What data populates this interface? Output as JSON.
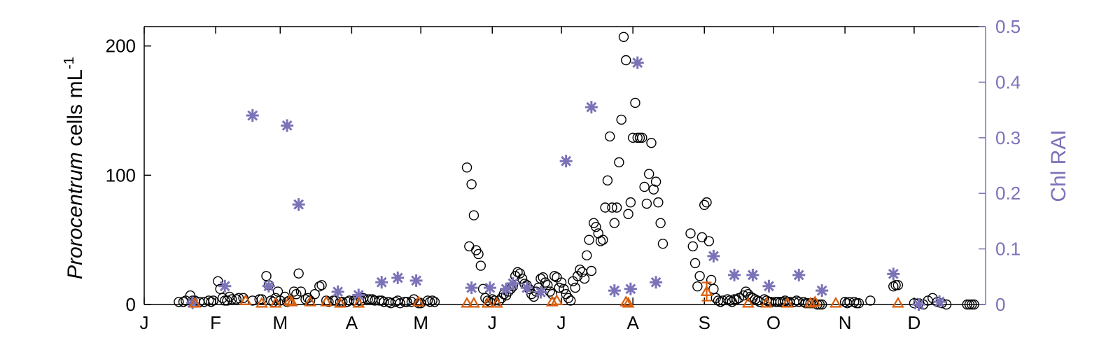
{
  "chart_data": {
    "type": "scatter",
    "title": "",
    "xlabel": "",
    "ylabel": {
      "italic": "Prorocentrum",
      "rest": " cells mL",
      "sup": "-1"
    },
    "y2label": "Chl RAI",
    "x_domain": [
      0,
      365
    ],
    "x_ticks": [
      {
        "label": "J",
        "x": 0
      },
      {
        "label": "F",
        "x": 31
      },
      {
        "label": "M",
        "x": 59
      },
      {
        "label": "A",
        "x": 90
      },
      {
        "label": "M",
        "x": 120
      },
      {
        "label": "J",
        "x": 151
      },
      {
        "label": "J",
        "x": 181
      },
      {
        "label": "A",
        "x": 212
      },
      {
        "label": "S",
        "x": 243
      },
      {
        "label": "O",
        "x": 273
      },
      {
        "label": "N",
        "x": 304
      },
      {
        "label": "D",
        "x": 334
      }
    ],
    "ylim": [
      0,
      215
    ],
    "yticks": [
      0,
      100,
      200
    ],
    "y2lim": [
      0,
      0.5
    ],
    "y2ticks": [
      "0",
      "0.1",
      "0.2",
      "0.3",
      "0.4",
      "0.5"
    ],
    "grid": false,
    "colors": {
      "circles": "#000000",
      "stars": "#7b73b8",
      "triangles": "#d95f0e",
      "right_axis": "#7b73b8"
    },
    "series": [
      {
        "marker": "circle",
        "points": [
          [
            15,
            2
          ],
          [
            17,
            2
          ],
          [
            18,
            3
          ],
          [
            20,
            7
          ],
          [
            21,
            3
          ],
          [
            22,
            3
          ],
          [
            24,
            2
          ],
          [
            26,
            2
          ],
          [
            28,
            3
          ],
          [
            29,
            2
          ],
          [
            30,
            3
          ],
          [
            32,
            18
          ],
          [
            33,
            12
          ],
          [
            34,
            5
          ],
          [
            35,
            3
          ],
          [
            36,
            3
          ],
          [
            37,
            6
          ],
          [
            38,
            4
          ],
          [
            40,
            4
          ],
          [
            41,
            5
          ],
          [
            43,
            5
          ],
          [
            47,
            3
          ],
          [
            50,
            4
          ],
          [
            51,
            4
          ],
          [
            53,
            22
          ],
          [
            54,
            15
          ],
          [
            55,
            3
          ],
          [
            56,
            2
          ],
          [
            57,
            5
          ],
          [
            58,
            10
          ],
          [
            59,
            3
          ],
          [
            61,
            6
          ],
          [
            62,
            2
          ],
          [
            63,
            3
          ],
          [
            65,
            10
          ],
          [
            66,
            8
          ],
          [
            67,
            24
          ],
          [
            68,
            10
          ],
          [
            70,
            4
          ],
          [
            71,
            5
          ],
          [
            72,
            3
          ],
          [
            74,
            8
          ],
          [
            76,
            14
          ],
          [
            77,
            15
          ],
          [
            79,
            3
          ],
          [
            80,
            2
          ],
          [
            82,
            3
          ],
          [
            83,
            3
          ],
          [
            85,
            2
          ],
          [
            86,
            2
          ],
          [
            88,
            2
          ],
          [
            89,
            3
          ],
          [
            91,
            3
          ],
          [
            92,
            2
          ],
          [
            94,
            3
          ],
          [
            95,
            5
          ],
          [
            97,
            4
          ],
          [
            98,
            4
          ],
          [
            99,
            4
          ],
          [
            100,
            3
          ],
          [
            102,
            3
          ],
          [
            103,
            3
          ],
          [
            104,
            2
          ],
          [
            106,
            2
          ],
          [
            107,
            1
          ],
          [
            109,
            2
          ],
          [
            110,
            3
          ],
          [
            111,
            1
          ],
          [
            113,
            2
          ],
          [
            114,
            2
          ],
          [
            116,
            2
          ],
          [
            117,
            4
          ],
          [
            119,
            1
          ],
          [
            120,
            1
          ],
          [
            123,
            3
          ],
          [
            124,
            2
          ],
          [
            125,
            3
          ],
          [
            126,
            2
          ],
          [
            140,
            106
          ],
          [
            141,
            45
          ],
          [
            142,
            93
          ],
          [
            143,
            69
          ],
          [
            144,
            42
          ],
          [
            145,
            39
          ],
          [
            146,
            30
          ],
          [
            147,
            12
          ],
          [
            148,
            5
          ],
          [
            149,
            3
          ],
          [
            150,
            2
          ],
          [
            151,
            4
          ],
          [
            152,
            3
          ],
          [
            154,
            3
          ],
          [
            155,
            5
          ],
          [
            156,
            8
          ],
          [
            157,
            7
          ],
          [
            158,
            10
          ],
          [
            159,
            12
          ],
          [
            160,
            14
          ],
          [
            161,
            22
          ],
          [
            162,
            25
          ],
          [
            163,
            24
          ],
          [
            164,
            20
          ],
          [
            165,
            16
          ],
          [
            166,
            15
          ],
          [
            167,
            12
          ],
          [
            168,
            8
          ],
          [
            169,
            6
          ],
          [
            170,
            10
          ],
          [
            171,
            13
          ],
          [
            172,
            20
          ],
          [
            173,
            21
          ],
          [
            174,
            17
          ],
          [
            175,
            15
          ],
          [
            176,
            10
          ],
          [
            177,
            8
          ],
          [
            178,
            22
          ],
          [
            179,
            21
          ],
          [
            180,
            13
          ],
          [
            181,
            17
          ],
          [
            182,
            12
          ],
          [
            183,
            8
          ],
          [
            184,
            5
          ],
          [
            185,
            3
          ],
          [
            186,
            18
          ],
          [
            187,
            13
          ],
          [
            188,
            22
          ],
          [
            189,
            27
          ],
          [
            190,
            25
          ],
          [
            191,
            20
          ],
          [
            192,
            38
          ],
          [
            193,
            50
          ],
          [
            194,
            26
          ],
          [
            195,
            63
          ],
          [
            196,
            60
          ],
          [
            197,
            55
          ],
          [
            198,
            49
          ],
          [
            199,
            50
          ],
          [
            200,
            75
          ],
          [
            201,
            96
          ],
          [
            202,
            130
          ],
          [
            203,
            75
          ],
          [
            204,
            63
          ],
          [
            205,
            75
          ],
          [
            206,
            110
          ],
          [
            207,
            143
          ],
          [
            208,
            207
          ],
          [
            209,
            189
          ],
          [
            210,
            70
          ],
          [
            211,
            79
          ],
          [
            212,
            129
          ],
          [
            213,
            156
          ],
          [
            214,
            129
          ],
          [
            215,
            129
          ],
          [
            216,
            129
          ],
          [
            217,
            91
          ],
          [
            218,
            78
          ],
          [
            219,
            101
          ],
          [
            220,
            125
          ],
          [
            221,
            89
          ],
          [
            222,
            95
          ],
          [
            223,
            79
          ],
          [
            224,
            63
          ],
          [
            225,
            47
          ],
          [
            237,
            55
          ],
          [
            238,
            45
          ],
          [
            239,
            32
          ],
          [
            240,
            14
          ],
          [
            241,
            22
          ],
          [
            242,
            52
          ],
          [
            243,
            77
          ],
          [
            244,
            79
          ],
          [
            245,
            49
          ],
          [
            246,
            19
          ],
          [
            247,
            12
          ],
          [
            248,
            5
          ],
          [
            249,
            3
          ],
          [
            250,
            2
          ],
          [
            251,
            3
          ],
          [
            253,
            4
          ],
          [
            254,
            3
          ],
          [
            255,
            2
          ],
          [
            256,
            4
          ],
          [
            257,
            4
          ],
          [
            258,
            5
          ],
          [
            260,
            7
          ],
          [
            261,
            10
          ],
          [
            262,
            8
          ],
          [
            263,
            6
          ],
          [
            264,
            5
          ],
          [
            265,
            4
          ],
          [
            266,
            3
          ],
          [
            267,
            2
          ],
          [
            269,
            4
          ],
          [
            270,
            3
          ],
          [
            271,
            2
          ],
          [
            272,
            2
          ],
          [
            274,
            2
          ],
          [
            275,
            2
          ],
          [
            276,
            2
          ],
          [
            277,
            2
          ],
          [
            278,
            3
          ],
          [
            279,
            2
          ],
          [
            280,
            2
          ],
          [
            282,
            2
          ],
          [
            283,
            3
          ],
          [
            284,
            2
          ],
          [
            286,
            2
          ],
          [
            287,
            1
          ],
          [
            288,
            1
          ],
          [
            289,
            1
          ],
          [
            290,
            1
          ],
          [
            292,
            0
          ],
          [
            293,
            0
          ],
          [
            294,
            0
          ],
          [
            304,
            2
          ],
          [
            305,
            1
          ],
          [
            306,
            2
          ],
          [
            308,
            2
          ],
          [
            309,
            1
          ],
          [
            310,
            1
          ],
          [
            315,
            3
          ],
          [
            325,
            14
          ],
          [
            326,
            15
          ],
          [
            327,
            15
          ],
          [
            334,
            1
          ],
          [
            336,
            1
          ],
          [
            338,
            0
          ],
          [
            340,
            3
          ],
          [
            342,
            5
          ],
          [
            344,
            2
          ],
          [
            346,
            1
          ],
          [
            348,
            0
          ],
          [
            357,
            0
          ],
          [
            358,
            0
          ],
          [
            359,
            0
          ],
          [
            360,
            0
          ]
        ]
      },
      {
        "marker": "star",
        "axis": "right",
        "points": [
          [
            21,
            0.003
          ],
          [
            35,
            0.033
          ],
          [
            47,
            0.34
          ],
          [
            54,
            0.033
          ],
          [
            62,
            0.322
          ],
          [
            67,
            0.18
          ],
          [
            84,
            0.023
          ],
          [
            93,
            0.017
          ],
          [
            103,
            0.04
          ],
          [
            110,
            0.048
          ],
          [
            118,
            0.043
          ],
          [
            142,
            0.03
          ],
          [
            150,
            0.03
          ],
          [
            157,
            0.028
          ],
          [
            160,
            0.038
          ],
          [
            166,
            0.03
          ],
          [
            172,
            0.022
          ],
          [
            183,
            0.258
          ],
          [
            194,
            0.355
          ],
          [
            204,
            0.025
          ],
          [
            211,
            0.028
          ],
          [
            214,
            0.435
          ],
          [
            222,
            0.04
          ],
          [
            247,
            0.087
          ],
          [
            256,
            0.053
          ],
          [
            264,
            0.053
          ],
          [
            271,
            0.033
          ],
          [
            284,
            0.053
          ],
          [
            294,
            0.025
          ],
          [
            325,
            0.055
          ],
          [
            336,
            0.0
          ],
          [
            345,
            0.005
          ]
        ]
      },
      {
        "marker": "triangle",
        "points": [
          [
            22,
            1
          ],
          [
            44,
            3
          ],
          [
            51,
            1
          ],
          [
            57,
            1
          ],
          [
            63,
            3
          ],
          [
            64,
            2
          ],
          [
            72,
            2
          ],
          [
            79,
            2
          ],
          [
            85,
            1
          ],
          [
            93,
            1
          ],
          [
            119,
            2
          ],
          [
            140,
            1
          ],
          [
            143,
            1
          ],
          [
            149,
            1
          ],
          [
            153,
            1
          ],
          [
            177,
            2
          ],
          [
            179,
            3
          ],
          [
            209,
            2
          ],
          [
            210,
            1
          ],
          [
            244,
            10
          ],
          [
            262,
            1
          ],
          [
            270,
            1
          ],
          [
            279,
            1
          ],
          [
            289,
            1
          ],
          [
            291,
            2
          ],
          [
            300,
            1
          ],
          [
            327,
            1
          ]
        ]
      }
    ],
    "error_bars": [
      {
        "x": 244,
        "y": 10,
        "low": 3,
        "high": 17
      }
    ]
  }
}
